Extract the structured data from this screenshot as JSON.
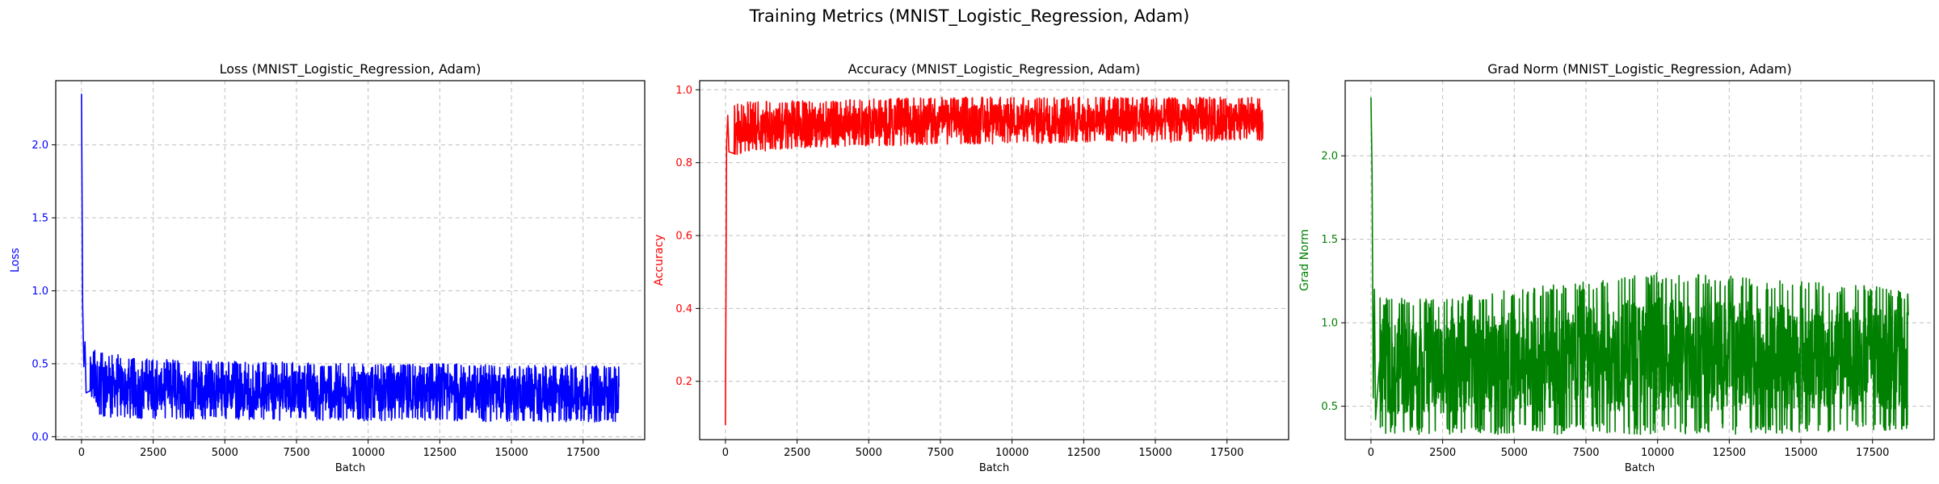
{
  "figure": {
    "suptitle": "Training Metrics (MNIST_Logistic_Regression, Adam)"
  },
  "chart_data": [
    {
      "type": "line",
      "title": "Loss (MNIST_Logistic_Regression, Adam)",
      "xlabel": "Batch",
      "ylabel": "Loss",
      "color": "#0000ff",
      "xlim": [
        -900,
        19650
      ],
      "ylim": [
        -0.02,
        2.44
      ],
      "xticks": [
        0,
        2500,
        5000,
        7500,
        10000,
        12500,
        15000,
        17500
      ],
      "xtick_labels": [
        "0",
        "2500",
        "5000",
        "7500",
        "10000",
        "12500",
        "15000",
        "17500"
      ],
      "yticks": [
        0.0,
        0.5,
        1.0,
        1.5,
        2.0
      ],
      "ytick_labels": [
        "0.0",
        "0.5",
        "1.0",
        "1.5",
        "2.0"
      ],
      "grid": true,
      "series": [
        {
          "x_range": [
            0,
            18750
          ],
          "initial": [
            2.35,
            0.9,
            0.48,
            0.65,
            0.3
          ],
          "envelope": {
            "x": [
              300,
              1000,
              2500,
              5000,
              7500,
              10000,
              12500,
              15000,
              17500,
              18750
            ],
            "upper": [
              0.62,
              0.57,
              0.53,
              0.52,
              0.51,
              0.5,
              0.5,
              0.49,
              0.49,
              0.48
            ],
            "lower": [
              0.14,
              0.13,
              0.12,
              0.12,
              0.11,
              0.11,
              0.11,
              0.1,
              0.1,
              0.1
            ]
          }
        }
      ]
    },
    {
      "type": "line",
      "title": "Accuracy (MNIST_Logistic_Regression, Adam)",
      "xlabel": "Batch",
      "ylabel": "Accuracy",
      "color": "#ff0000",
      "xlim": [
        -900,
        19650
      ],
      "ylim": [
        0.04,
        1.025
      ],
      "xticks": [
        0,
        2500,
        5000,
        7500,
        10000,
        12500,
        15000,
        17500
      ],
      "xtick_labels": [
        "0",
        "2500",
        "5000",
        "7500",
        "10000",
        "12500",
        "15000",
        "17500"
      ],
      "yticks": [
        0.2,
        0.4,
        0.6,
        0.8,
        1.0
      ],
      "ytick_labels": [
        "0.2",
        "0.4",
        "0.6",
        "0.8",
        "1.0"
      ],
      "grid": true,
      "series": [
        {
          "x_range": [
            0,
            18750
          ],
          "initial": [
            0.08,
            0.85,
            0.93,
            0.83
          ],
          "envelope": {
            "x": [
              300,
              1000,
              2500,
              5000,
              7500,
              10000,
              12500,
              15000,
              17500,
              18750
            ],
            "upper": [
              0.96,
              0.97,
              0.97,
              0.975,
              0.98,
              0.98,
              0.98,
              0.98,
              0.98,
              0.98
            ],
            "lower": [
              0.82,
              0.83,
              0.84,
              0.845,
              0.85,
              0.85,
              0.855,
              0.855,
              0.86,
              0.86
            ]
          }
        }
      ]
    },
    {
      "type": "line",
      "title": "Grad Norm (MNIST_Logistic_Regression, Adam)",
      "xlabel": "Batch",
      "ylabel": "Grad Norm",
      "color": "#008000",
      "xlim": [
        -900,
        19650
      ],
      "ylim": [
        0.3,
        2.45
      ],
      "xticks": [
        0,
        2500,
        5000,
        7500,
        10000,
        12500,
        15000,
        17500
      ],
      "xtick_labels": [
        "0",
        "2500",
        "5000",
        "7500",
        "10000",
        "12500",
        "15000",
        "17500"
      ],
      "yticks": [
        0.5,
        1.0,
        1.5,
        2.0
      ],
      "ytick_labels": [
        "0.5",
        "1.0",
        "1.5",
        "2.0"
      ],
      "grid": true,
      "series": [
        {
          "x_range": [
            0,
            18750
          ],
          "initial": [
            2.35,
            1.9,
            0.55,
            1.2,
            0.42
          ],
          "envelope": {
            "x": [
              300,
              1000,
              2500,
              5000,
              7500,
              10000,
              12500,
              15000,
              17500,
              18750
            ],
            "upper": [
              1.15,
              1.15,
              1.15,
              1.2,
              1.25,
              1.3,
              1.28,
              1.25,
              1.22,
              1.2
            ],
            "lower": [
              0.33,
              0.33,
              0.33,
              0.33,
              0.33,
              0.33,
              0.33,
              0.34,
              0.35,
              0.36
            ]
          }
        }
      ]
    }
  ]
}
